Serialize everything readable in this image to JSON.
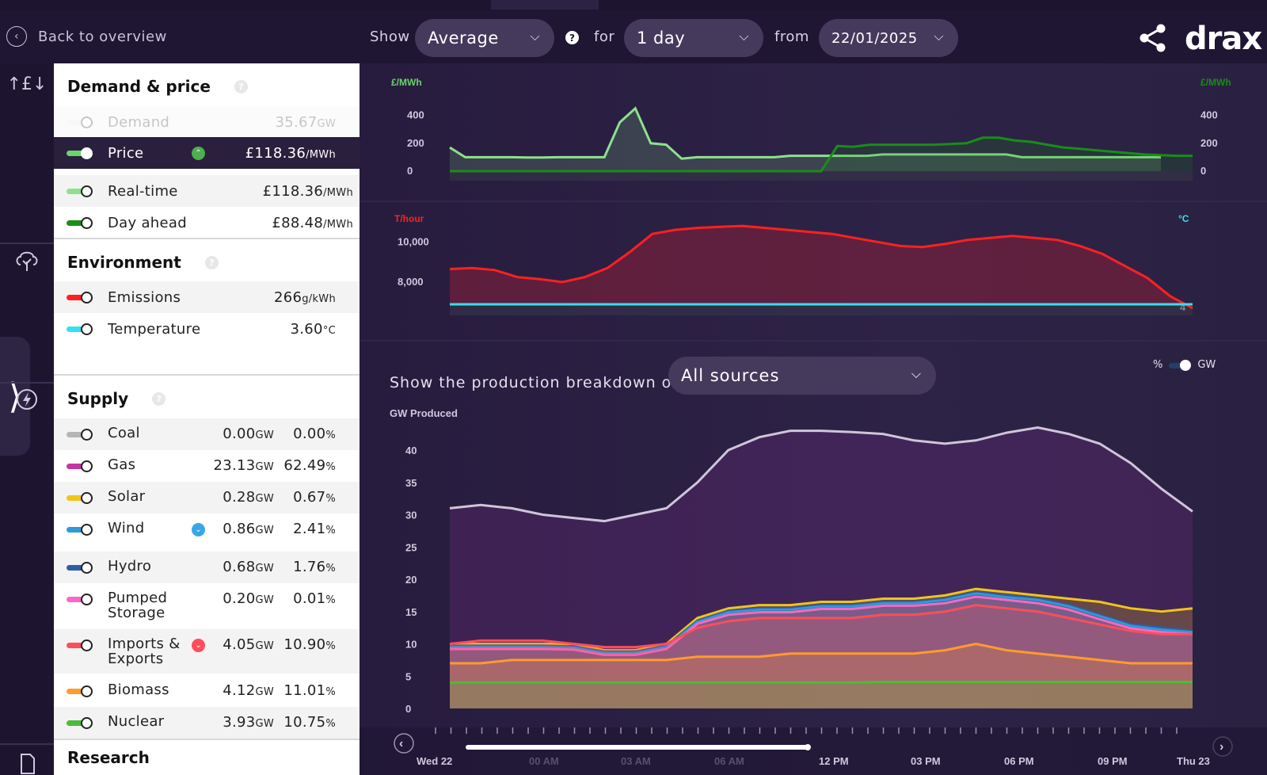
{
  "header": {
    "back_label": "Back to overview",
    "show_label": "Show",
    "show_value": "Average",
    "for_label": "for",
    "for_value": "1 day",
    "from_label": "from",
    "from_value": "22/01/2025",
    "logo": "drax"
  },
  "panel": {
    "demand_price": {
      "title": "Demand & price",
      "rows": [
        {
          "name": "Demand",
          "value": "35.67",
          "unit": "GW",
          "color": "#e6e6e6"
        },
        {
          "name": "Price",
          "value": "£118.36",
          "unit": "/MWh",
          "color": "#6bd36b",
          "badge": "up",
          "badge_color": "#4caf50"
        },
        {
          "name": "Real-time",
          "value": "£118.36",
          "unit": "/MWh",
          "color": "#8ee08e"
        },
        {
          "name": "Day ahead",
          "value": "£88.48",
          "unit": "/MWh",
          "color": "#1a8c1a"
        }
      ]
    },
    "environment": {
      "title": "Environment",
      "rows": [
        {
          "name": "Emissions",
          "value": "266",
          "unit": "g/kWh",
          "color": "#ff2020"
        },
        {
          "name": "Temperature",
          "value": "3.60",
          "unit": "°C",
          "color": "#35e0f0"
        }
      ]
    },
    "supply": {
      "title": "Supply",
      "rows": [
        {
          "name": "Coal",
          "gw": "0.00",
          "pct": "0.00",
          "color": "#b5b5b5"
        },
        {
          "name": "Gas",
          "gw": "23.13",
          "pct": "62.49",
          "color": "#c2379f"
        },
        {
          "name": "Solar",
          "gw": "0.28",
          "pct": "0.67",
          "color": "#f0c419"
        },
        {
          "name": "Wind",
          "gw": "0.86",
          "pct": "2.41",
          "color": "#2e9ad8",
          "badge": "down",
          "badge_color": "#3aa6e6"
        },
        {
          "name": "Hydro",
          "gw": "0.68",
          "pct": "1.76",
          "color": "#2d5fa8"
        },
        {
          "name": "Pumped Storage",
          "gw": "0.20",
          "pct": "0.01",
          "color": "#ff66c4"
        },
        {
          "name": "Imports & Exports",
          "gw": "4.05",
          "pct": "10.90",
          "color": "#ff4d5a",
          "badge": "down",
          "badge_color": "#ff4d5a"
        },
        {
          "name": "Biomass",
          "gw": "4.12",
          "pct": "11.01",
          "color": "#ff9b2e"
        },
        {
          "name": "Nuclear",
          "gw": "3.93",
          "pct": "10.75",
          "color": "#4dbb3a"
        }
      ],
      "gw_unit": "GW",
      "pct_unit": "%"
    },
    "research_title": "Research"
  },
  "production": {
    "label": "Show the production breakdown of",
    "select_value": "All sources",
    "unit_pct": "%",
    "unit_gw": "GW"
  },
  "chart_data": [
    {
      "type": "line",
      "ylabel_left": "£/MWh",
      "ylabel_right": "£/MWh",
      "yticks": [
        "400",
        "200",
        "0"
      ],
      "ylim": [
        0,
        500
      ],
      "series": [
        {
          "name": "Real-time",
          "color": "#8ee08e",
          "values": [
            170,
            100,
            100,
            100,
            100,
            98,
            98,
            100,
            100,
            100,
            100,
            350,
            450,
            200,
            190,
            90,
            100,
            100,
            100,
            100,
            100,
            100,
            110,
            110,
            110,
            110,
            110,
            110,
            120,
            120,
            120,
            120,
            120,
            120,
            120,
            120,
            120,
            100,
            100,
            100,
            100,
            100,
            100,
            100,
            100,
            100,
            100
          ]
        },
        {
          "name": "Day ahead",
          "color": "#1a8c1a",
          "values": [
            0,
            0,
            0,
            0,
            0,
            0,
            0,
            0,
            0,
            0,
            0,
            0,
            0,
            0,
            0,
            0,
            0,
            0,
            0,
            0,
            0,
            0,
            0,
            0,
            180,
            175,
            190,
            190,
            190,
            190,
            190,
            195,
            200,
            240,
            240,
            220,
            210,
            190,
            170,
            160,
            150,
            140,
            130,
            120,
            115,
            110,
            110
          ]
        }
      ]
    },
    {
      "type": "line",
      "ylabel_left": "T/hour",
      "ylabel_right": "°C",
      "yticks": [
        "10,000",
        "8,000"
      ],
      "right_ticks": [
        "4"
      ],
      "series": [
        {
          "name": "Emissions",
          "color": "#ff2020",
          "values": [
            8650,
            8700,
            8600,
            8250,
            8150,
            8000,
            8250,
            8700,
            9500,
            10400,
            10600,
            10700,
            10750,
            10800,
            10700,
            10600,
            10500,
            10400,
            10200,
            10000,
            9800,
            9750,
            9900,
            10100,
            10200,
            10300,
            10200,
            10100,
            9800,
            9400,
            8800,
            8200,
            7300,
            6700
          ]
        },
        {
          "name": "Temperature",
          "color": "#35e0f0",
          "values": [
            3.6,
            3.6
          ]
        }
      ]
    },
    {
      "type": "area",
      "ylabel": "GW Produced",
      "yticks": [
        "40",
        "35",
        "30",
        "25",
        "20",
        "15",
        "10",
        "5",
        "0"
      ],
      "ylim": [
        0,
        45
      ],
      "x_labels": [
        "Wed 22",
        "00 AM",
        "03 AM",
        "06 AM",
        "12 PM",
        "03 PM",
        "06 PM",
        "09 PM",
        "Thu 23"
      ],
      "series": [
        {
          "name": "Demand",
          "color": "#cfc5da",
          "values": [
            31,
            31.5,
            31,
            30,
            29.5,
            29,
            30,
            31,
            35,
            40,
            42,
            43,
            43,
            42.8,
            42.5,
            41.5,
            41,
            41.5,
            42.7,
            43.5,
            42.5,
            41,
            38,
            34,
            30.5
          ]
        },
        {
          "name": "Solar",
          "color": "#f0c419",
          "values": [
            10,
            10,
            10,
            10,
            10,
            9,
            9,
            10,
            14,
            15.5,
            16,
            16,
            16.5,
            16.5,
            17,
            17,
            17.5,
            18.5,
            18,
            17.5,
            17,
            16.5,
            15.5,
            15,
            15.5
          ]
        },
        {
          "name": "Hydro",
          "color": "#2d5fa8",
          "values": [
            9.7,
            9.7,
            9.7,
            9.7,
            9.6,
            8.8,
            8.8,
            9.7,
            13.6,
            15.1,
            15.5,
            15.5,
            16,
            16,
            16.5,
            16.5,
            17,
            18,
            17.5,
            17,
            16,
            14.5,
            13,
            12.5,
            12
          ]
        },
        {
          "name": "Wind",
          "color": "#2e9ad8",
          "values": [
            9.5,
            9.5,
            9.5,
            9.5,
            9.4,
            8.6,
            8.6,
            9.5,
            13.4,
            14.9,
            15.3,
            15.3,
            15.8,
            15.8,
            16.3,
            16.3,
            16.8,
            17.8,
            17.2,
            16.8,
            15.8,
            14.3,
            12.8,
            12.2,
            11.8
          ]
        },
        {
          "name": "Pumped Storage",
          "color": "#ff66c4",
          "values": [
            9.2,
            9.2,
            9.2,
            9.2,
            9.1,
            8.3,
            8.3,
            9.2,
            13.1,
            14.5,
            14.9,
            14.9,
            15.4,
            15.4,
            15.9,
            15.9,
            16.3,
            17.3,
            16.8,
            16.3,
            15.3,
            13.8,
            12.4,
            11.8,
            11.5
          ]
        },
        {
          "name": "Imports & Exports",
          "color": "#ff4d5a",
          "values": [
            10,
            10.5,
            10.5,
            10.5,
            10,
            9.5,
            9.5,
            10,
            12.5,
            13.5,
            14,
            14,
            14,
            14,
            14.5,
            14.5,
            15,
            16,
            15.5,
            15,
            14,
            13,
            12,
            11.5,
            11.5
          ]
        },
        {
          "name": "Biomass",
          "color": "#ff9b2e",
          "values": [
            7,
            7,
            7.5,
            7.5,
            7.5,
            7.5,
            7.5,
            7.5,
            8,
            8,
            8,
            8.5,
            8.5,
            8.5,
            8.5,
            8.5,
            9,
            10,
            9,
            8.5,
            8,
            7.5,
            7,
            7,
            7
          ]
        },
        {
          "name": "Nuclear",
          "color": "#4dbb3a",
          "values": [
            4,
            4,
            4,
            4,
            4,
            4,
            4,
            4,
            4,
            4,
            4,
            4,
            4,
            4,
            4.1,
            4.1,
            4.1,
            4.1,
            4.1,
            4.1,
            4.1,
            4.1,
            4.1,
            4.1,
            4.1
          ]
        }
      ]
    }
  ]
}
